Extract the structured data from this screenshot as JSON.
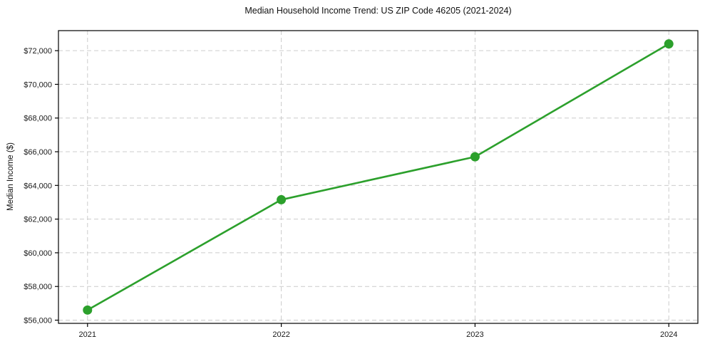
{
  "chart_data": {
    "type": "line",
    "title": "Median Household Income Trend: US ZIP Code 46205 (2021-2024)",
    "xlabel": "",
    "ylabel": "Median Income ($)",
    "x": [
      2021,
      2022,
      2023,
      2024
    ],
    "x_tick_labels": [
      "2021",
      "2022",
      "2023",
      "2024"
    ],
    "series": [
      {
        "name": "Median Household Income",
        "values": [
          56600,
          63150,
          65700,
          72400
        ]
      }
    ],
    "y_ticks": [
      56000,
      58000,
      60000,
      62000,
      64000,
      66000,
      68000,
      70000,
      72000
    ],
    "y_tick_labels": [
      "$56,000",
      "$58,000",
      "$60,000",
      "$62,000",
      "$64,000",
      "$66,000",
      "$68,000",
      "$70,000",
      "$72,000"
    ],
    "xlim": [
      2020.85,
      2024.15
    ],
    "ylim": [
      55810,
      73190
    ],
    "grid": true,
    "grid_style": "dashed",
    "legend": "none",
    "line_color": "#2ca02c",
    "marker": "circle",
    "grid_color": "#cccccc",
    "axis_color": "#000000",
    "text_color": "#1a1a1a",
    "background_color": "#ffffff"
  }
}
